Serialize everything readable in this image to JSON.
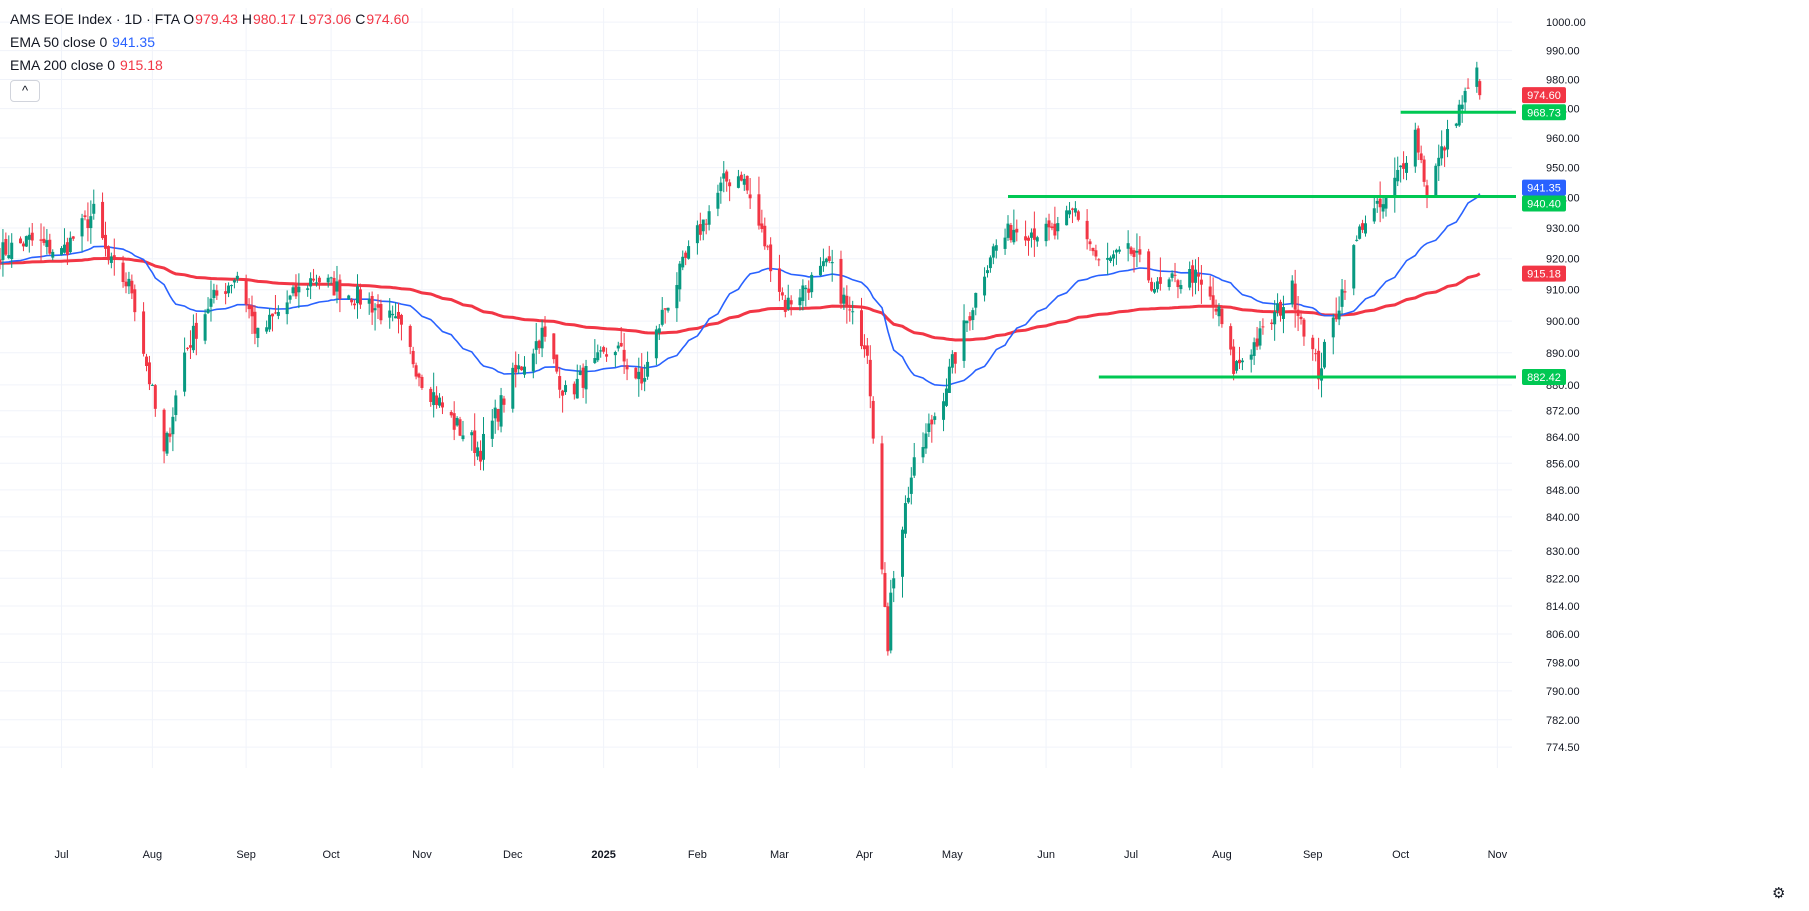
{
  "legend": {
    "symbol": "AMS EOE Index · 1D · FTA",
    "o_label": "O",
    "o": "979.43",
    "h_label": "H",
    "h": "980.17",
    "l_label": "L",
    "l": "973.06",
    "c_label": "C",
    "c": "974.60",
    "ema50_label": "EMA 50 close 0",
    "ema50": "941.35",
    "ema200_label": "EMA 200 close 0",
    "ema200": "915.18",
    "collapse_glyph": "^"
  },
  "colors": {
    "up": "#089981",
    "down": "#f23645",
    "ema50": "#2962ff",
    "ema200": "#f23645",
    "level": "#00c853",
    "grid": "#f0f3fa",
    "text": "#131722",
    "axis_text": "#131722"
  },
  "settings_icon": "gear-icon",
  "chart_data": {
    "type": "candlestick",
    "price_axis": {
      "scale": "log",
      "range": [
        771,
        1005
      ],
      "ticks": [
        "1000.00",
        "990.00",
        "980.00",
        "970.00",
        "960.00",
        "950.00",
        "940.00",
        "930.00",
        "920.00",
        "910.00",
        "900.00",
        "890.00",
        "880.00",
        "872.00",
        "864.00",
        "856.00",
        "848.00",
        "840.00",
        "830.00",
        "822.00",
        "814.00",
        "806.00",
        "798.00",
        "790.00",
        "782.00",
        "774.50"
      ]
    },
    "time_axis": {
      "range": [
        "2024-06-10",
        "2024-11-08"
      ],
      "range_end": "2025-11-08",
      "labels": [
        {
          "text": "Jul",
          "date": "2024-07-01"
        },
        {
          "text": "Aug",
          "date": "2024-08-01"
        },
        {
          "text": "Sep",
          "date": "2024-09-02"
        },
        {
          "text": "Oct",
          "date": "2024-10-01"
        },
        {
          "text": "Nov",
          "date": "2024-11-01"
        },
        {
          "text": "Dec",
          "date": "2024-12-02"
        },
        {
          "text": "2025",
          "date": "2025-01-02"
        },
        {
          "text": "Feb",
          "date": "2025-02-03"
        },
        {
          "text": "Mar",
          "date": "2025-03-03"
        },
        {
          "text": "Apr",
          "date": "2025-04-01"
        },
        {
          "text": "May",
          "date": "2025-05-01"
        },
        {
          "text": "Jun",
          "date": "2025-06-02"
        },
        {
          "text": "Jul",
          "date": "2025-07-01"
        },
        {
          "text": "Aug",
          "date": "2025-08-01"
        },
        {
          "text": "Sep",
          "date": "2025-09-01"
        },
        {
          "text": "Oct",
          "date": "2025-10-01"
        },
        {
          "text": "Nov",
          "date": "2025-11-03"
        }
      ]
    },
    "close_anchors": [
      [
        "2024-06-10",
        922
      ],
      [
        "2024-06-20",
        926
      ],
      [
        "2024-07-01",
        922
      ],
      [
        "2024-07-12",
        935
      ],
      [
        "2024-07-17",
        919
      ],
      [
        "2024-07-25",
        910
      ],
      [
        "2024-08-05",
        858
      ],
      [
        "2024-08-12",
        890
      ],
      [
        "2024-08-20",
        905
      ],
      [
        "2024-08-30",
        915
      ],
      [
        "2024-09-06",
        895
      ],
      [
        "2024-09-15",
        905
      ],
      [
        "2024-09-25",
        914
      ],
      [
        "2024-10-04",
        910
      ],
      [
        "2024-10-14",
        906
      ],
      [
        "2024-10-24",
        898
      ],
      [
        "2024-11-01",
        882
      ],
      [
        "2024-11-12",
        868
      ],
      [
        "2024-11-21",
        860
      ],
      [
        "2024-12-02",
        882
      ],
      [
        "2024-12-12",
        896
      ],
      [
        "2024-12-20",
        877
      ],
      [
        "2025-01-06",
        892
      ],
      [
        "2025-01-15",
        880
      ],
      [
        "2025-01-22",
        902
      ],
      [
        "2025-02-03",
        928
      ],
      [
        "2025-02-12",
        945
      ],
      [
        "2025-02-18",
        948
      ],
      [
        "2025-02-26",
        925
      ],
      [
        "2025-03-05",
        905
      ],
      [
        "2025-03-13",
        912
      ],
      [
        "2025-03-20",
        918
      ],
      [
        "2025-03-27",
        902
      ],
      [
        "2025-04-02",
        892
      ],
      [
        "2025-04-07",
        828
      ],
      [
        "2025-04-09",
        798
      ],
      [
        "2025-04-10",
        820
      ],
      [
        "2025-04-17",
        852
      ],
      [
        "2025-04-28",
        878
      ],
      [
        "2025-05-06",
        900
      ],
      [
        "2025-05-14",
        922
      ],
      [
        "2025-05-22",
        930
      ],
      [
        "2025-06-05",
        928
      ],
      [
        "2025-06-12",
        936
      ],
      [
        "2025-06-20",
        918
      ],
      [
        "2025-07-01",
        922
      ],
      [
        "2025-07-10",
        910
      ],
      [
        "2025-07-22",
        915
      ],
      [
        "2025-07-31",
        902
      ],
      [
        "2025-08-05",
        885
      ],
      [
        "2025-08-15",
        896
      ],
      [
        "2025-08-25",
        910
      ],
      [
        "2025-09-03",
        884
      ],
      [
        "2025-09-10",
        906
      ],
      [
        "2025-09-18",
        932
      ],
      [
        "2025-09-26",
        938
      ],
      [
        "2025-10-06",
        962
      ],
      [
        "2025-10-10",
        942
      ],
      [
        "2025-10-15",
        955
      ],
      [
        "2025-10-20",
        968
      ],
      [
        "2025-10-27",
        982
      ],
      [
        "2025-10-28",
        974.6
      ]
    ],
    "last_ohlc": {
      "open": 979.43,
      "high": 980.17,
      "low": 973.06,
      "close": 974.6
    },
    "ema50": {
      "last": 941.35
    },
    "ema200": {
      "last": 915.18
    },
    "horizontal_levels": [
      {
        "value": 968.73,
        "label": "968.73",
        "from": "2025-10-01"
      },
      {
        "value": 940.4,
        "label": "940.40",
        "from": "2025-05-20"
      },
      {
        "value": 882.42,
        "label": "882.42",
        "from": "2025-06-20"
      }
    ],
    "price_labels": [
      {
        "value": 974.6,
        "label": "974.60",
        "kind": "last-close"
      },
      {
        "value": 968.73,
        "label": "968.73",
        "kind": "level"
      },
      {
        "value": 941.35,
        "label": "941.35",
        "kind": "ema50"
      },
      {
        "value": 940.4,
        "label": "940.40",
        "kind": "level"
      },
      {
        "value": 915.18,
        "label": "915.18",
        "kind": "ema200"
      },
      {
        "value": 882.42,
        "label": "882.42",
        "kind": "level"
      }
    ],
    "grid": true
  }
}
